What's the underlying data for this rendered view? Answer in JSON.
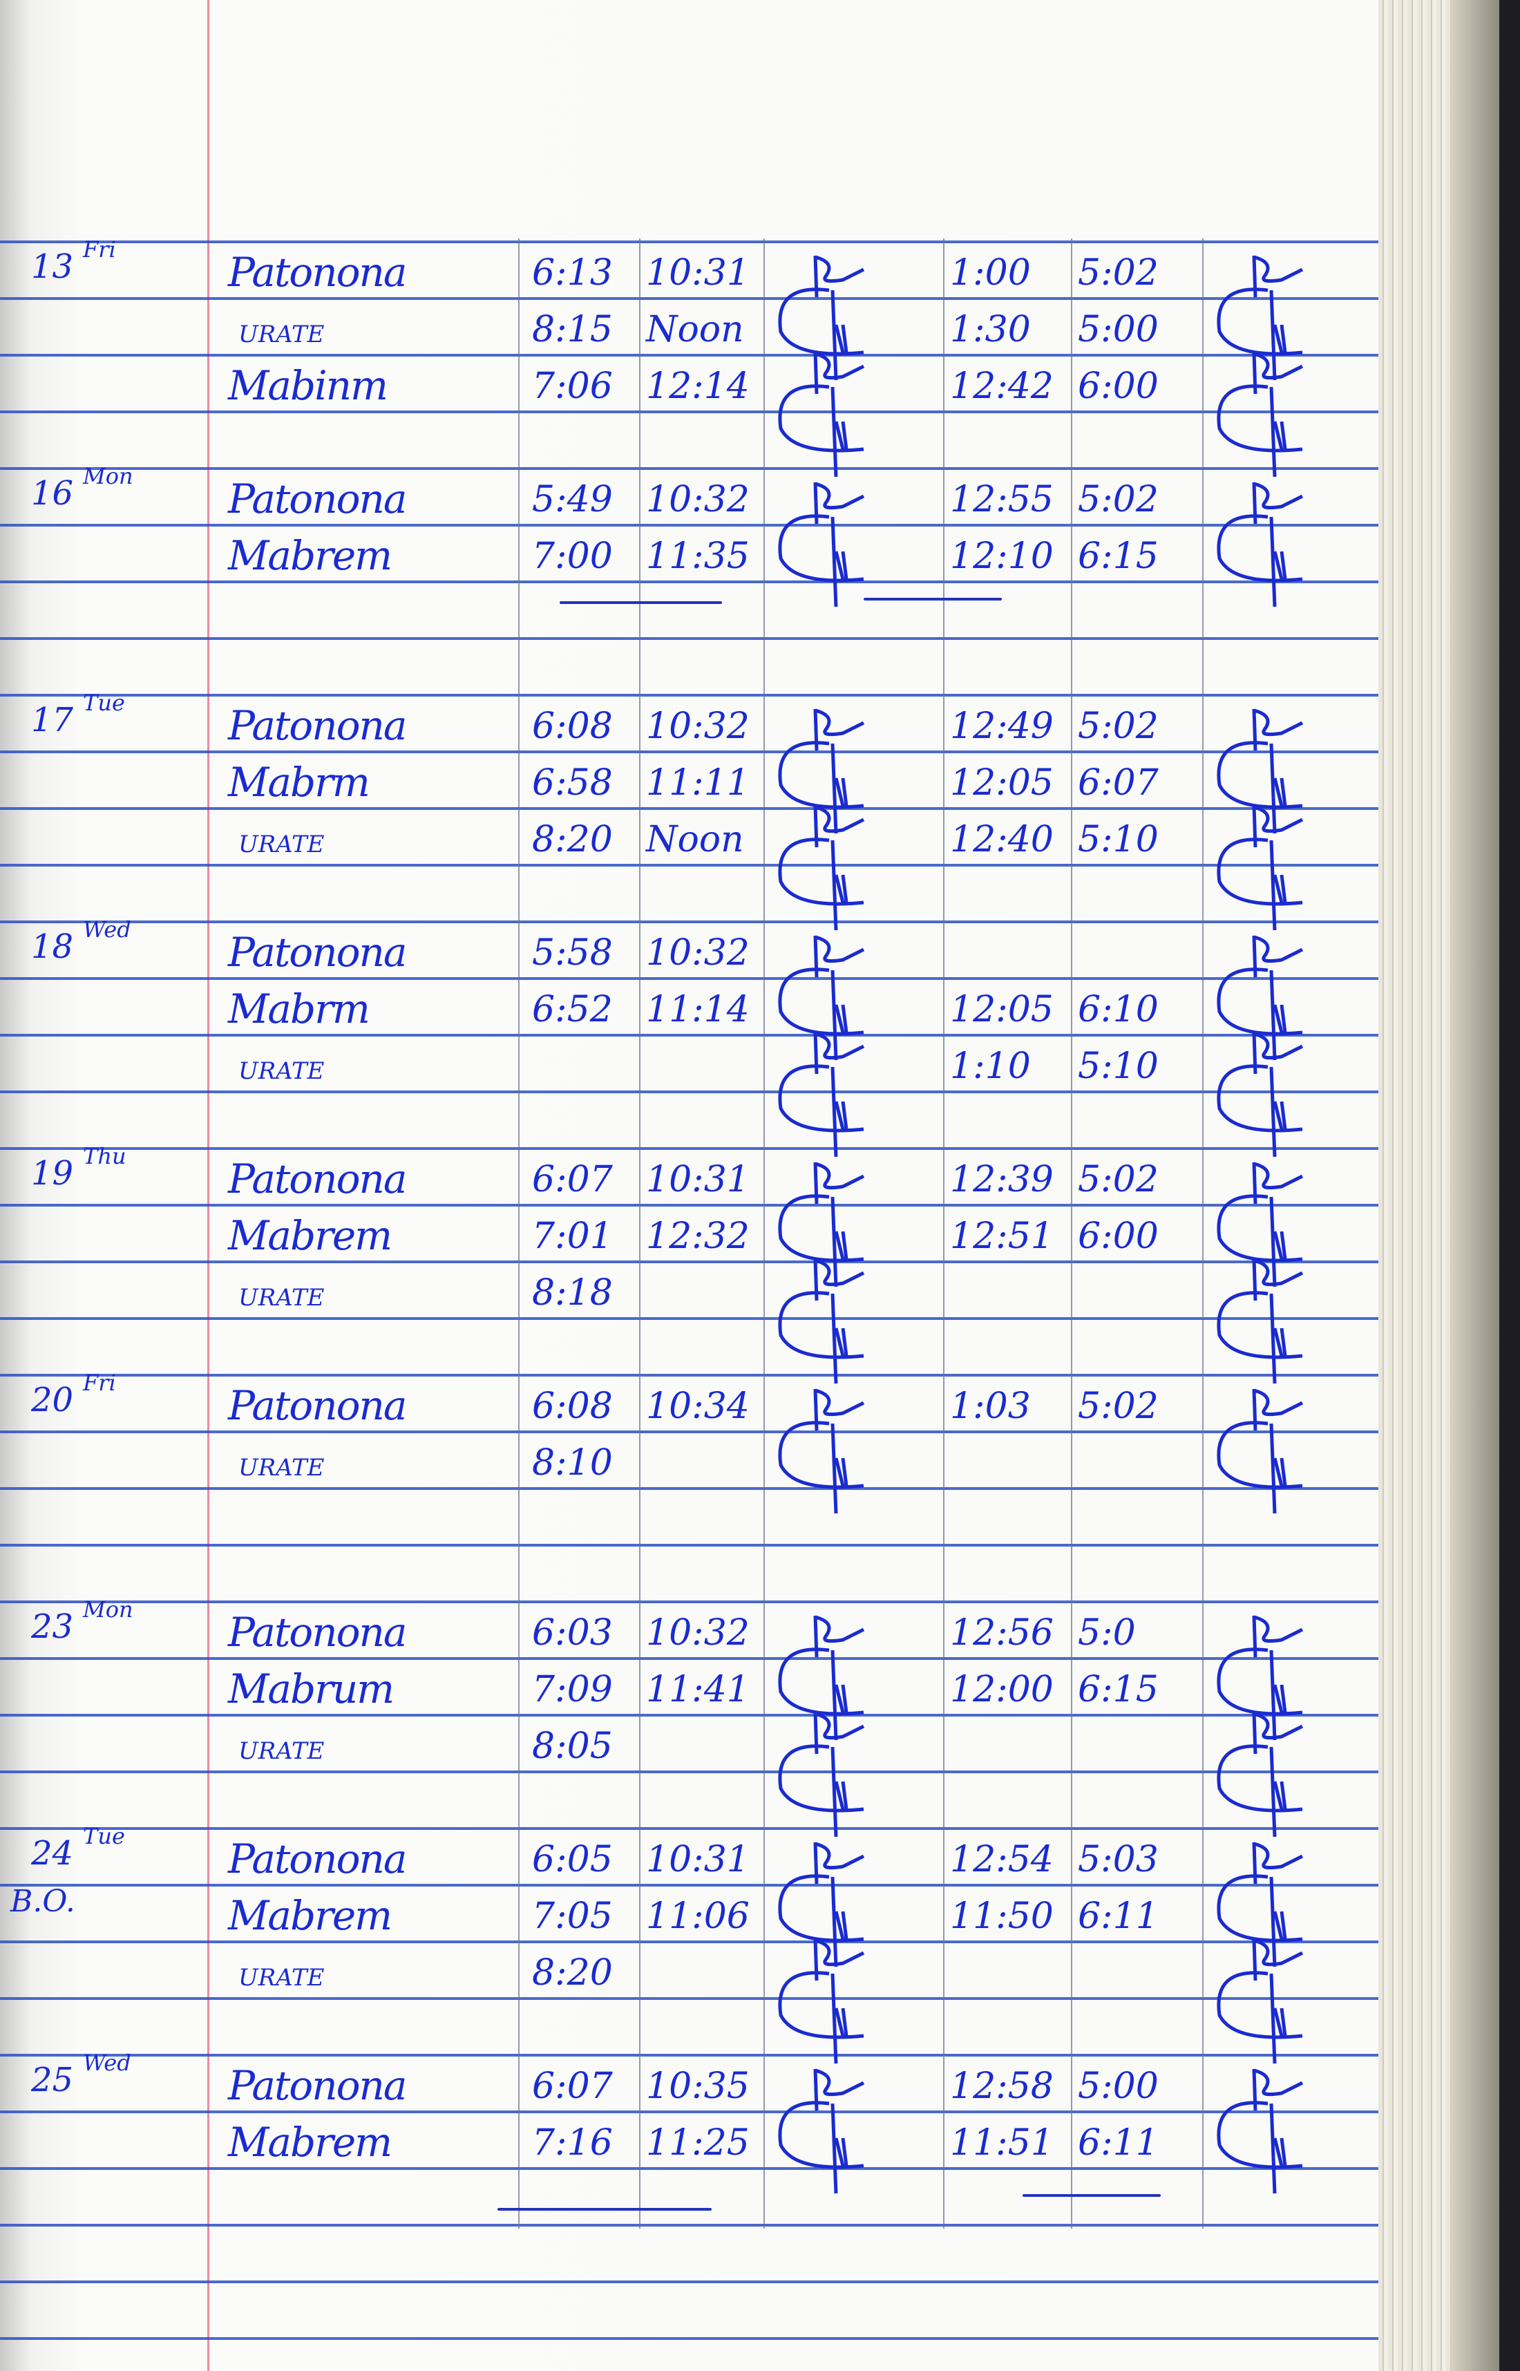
{
  "ink_color": "#1a2bd0",
  "entries": [
    {
      "date": "13",
      "day": "Fri",
      "note": "",
      "rows": [
        {
          "name": "Patonona",
          "in": "6:13",
          "out": "10:31",
          "in2": "1:00",
          "out2": "5:02"
        },
        {
          "name": "URATE",
          "in": "8:15",
          "out": "Noon",
          "in2": "1:30",
          "out2": "5:00"
        },
        {
          "name": "Mabinm",
          "in": "7:06",
          "out": "12:14",
          "in2": "12:42",
          "out2": "6:00"
        }
      ]
    },
    {
      "date": "16",
      "day": "Mon",
      "note": "",
      "rows": [
        {
          "name": "Patonona",
          "in": "5:49",
          "out": "10:32",
          "in2": "12:55",
          "out2": "5:02"
        },
        {
          "name": "Mabrem",
          "in": "7:00",
          "out": "11:35",
          "in2": "12:10",
          "out2": "6:15"
        }
      ]
    },
    {
      "date": "17",
      "day": "Tue",
      "note": "",
      "rows": [
        {
          "name": "Patonona",
          "in": "6:08",
          "out": "10:32",
          "in2": "12:49",
          "out2": "5:02"
        },
        {
          "name": "Mabrm",
          "in": "6:58",
          "out": "11:11",
          "in2": "12:05",
          "out2": "6:07"
        },
        {
          "name": "URATE",
          "in": "8:20",
          "out": "Noon",
          "in2": "12:40",
          "out2": "5:10"
        }
      ]
    },
    {
      "date": "18",
      "day": "Wed",
      "note": "",
      "rows": [
        {
          "name": "Patonona",
          "in": "5:58",
          "out": "10:32",
          "in2": "",
          "out2": ""
        },
        {
          "name": "Mabrm",
          "in": "6:52",
          "out": "11:14",
          "in2": "12:05",
          "out2": "6:10"
        },
        {
          "name": "URATE",
          "in": "",
          "out": "",
          "in2": "1:10",
          "out2": "5:10"
        }
      ]
    },
    {
      "date": "19",
      "day": "Thu",
      "note": "",
      "rows": [
        {
          "name": "Patonona",
          "in": "6:07",
          "out": "10:31",
          "in2": "12:39",
          "out2": "5:02"
        },
        {
          "name": "Mabrem",
          "in": "7:01",
          "out": "12:32",
          "in2": "12:51",
          "out2": "6:00"
        },
        {
          "name": "URATE",
          "in": "8:18",
          "out": "",
          "in2": "",
          "out2": ""
        }
      ]
    },
    {
      "date": "20",
      "day": "Fri",
      "note": "",
      "rows": [
        {
          "name": "Patonona",
          "in": "6:08",
          "out": "10:34",
          "in2": "1:03",
          "out2": "5:02"
        },
        {
          "name": "URATE",
          "in": "8:10",
          "out": "",
          "in2": "",
          "out2": ""
        }
      ]
    },
    {
      "date": "23",
      "day": "Mon",
      "note": "",
      "rows": [
        {
          "name": "Patonona",
          "in": "6:03",
          "out": "10:32",
          "in2": "12:56",
          "out2": "5:0"
        },
        {
          "name": "Mabrum",
          "in": "7:09",
          "out": "11:41",
          "in2": "12:00",
          "out2": "6:15"
        },
        {
          "name": "URATE",
          "in": "8:05",
          "out": "",
          "in2": "",
          "out2": ""
        }
      ]
    },
    {
      "date": "24",
      "day": "Tue",
      "note": "B.O.",
      "rows": [
        {
          "name": "Patonona",
          "in": "6:05",
          "out": "10:31",
          "in2": "12:54",
          "out2": "5:03"
        },
        {
          "name": "Mabrem",
          "in": "7:05",
          "out": "11:06",
          "in2": "11:50",
          "out2": "6:11"
        },
        {
          "name": "URATE",
          "in": "8:20",
          "out": "",
          "in2": "",
          "out2": ""
        }
      ]
    },
    {
      "date": "25",
      "day": "Wed",
      "note": "",
      "rows": [
        {
          "name": "Patonona",
          "in": "6:07",
          "out": "10:35",
          "in2": "12:58",
          "out2": "5:00"
        },
        {
          "name": "Mabrem",
          "in": "7:16",
          "out": "11:25",
          "in2": "11:51",
          "out2": "6:11"
        }
      ]
    }
  ]
}
